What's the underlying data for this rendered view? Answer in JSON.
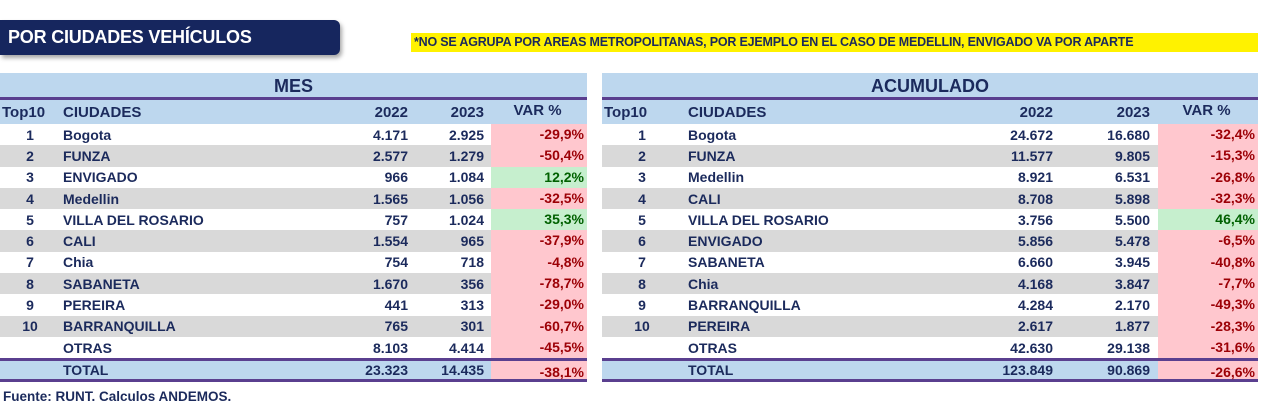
{
  "title": "POR CIUDADES VEHÍCULOS",
  "note": "*NO SE AGRUPA POR AREAS METROPOLITANAS, POR EJEMPLO EN EL CASO DE MEDELLIN, ENVIGADO VA POR APARTE",
  "colors": {
    "negative_bg": "#ffc7ce",
    "negative_text": "#9c0006",
    "positive_bg": "#c6efce",
    "positive_text": "#006100",
    "header_bg": "#bdd7ee"
  },
  "tables": [
    {
      "title": "MES",
      "headers": [
        "Top10",
        "CIUDADES",
        "2022",
        "2023",
        "VAR %"
      ],
      "rows": [
        [
          "1",
          "Bogota",
          "4.171",
          "2.925",
          "-29,9%"
        ],
        [
          "2",
          "FUNZA",
          "2.577",
          "1.279",
          "-50,4%"
        ],
        [
          "3",
          "ENVIGADO",
          "966",
          "1.084",
          "12,2%"
        ],
        [
          "4",
          "Medellin",
          "1.565",
          "1.056",
          "-32,5%"
        ],
        [
          "5",
          "VILLA DEL ROSARIO",
          "757",
          "1.024",
          "35,3%"
        ],
        [
          "6",
          "CALI",
          "1.554",
          "965",
          "-37,9%"
        ],
        [
          "7",
          "Chia",
          "754",
          "718",
          "-4,8%"
        ],
        [
          "8",
          "SABANETA",
          "1.670",
          "356",
          "-78,7%"
        ],
        [
          "9",
          "PEREIRA",
          "441",
          "313",
          "-29,0%"
        ],
        [
          "10",
          "BARRANQUILLA",
          "765",
          "301",
          "-60,7%"
        ],
        [
          "",
          "OTRAS",
          "8.103",
          "4.414",
          "-45,5%"
        ]
      ],
      "total": [
        "",
        "TOTAL",
        "23.323",
        "14.435",
        "-38,1%"
      ]
    },
    {
      "title": "ACUMULADO",
      "headers": [
        "Top10",
        "CIUDADES",
        "2022",
        "2023",
        "VAR %"
      ],
      "rows": [
        [
          "1",
          "Bogota",
          "24.672",
          "16.680",
          "-32,4%"
        ],
        [
          "2",
          "FUNZA",
          "11.577",
          "9.805",
          "-15,3%"
        ],
        [
          "3",
          "Medellin",
          "8.921",
          "6.531",
          "-26,8%"
        ],
        [
          "4",
          "CALI",
          "8.708",
          "5.898",
          "-32,3%"
        ],
        [
          "5",
          "VILLA DEL ROSARIO",
          "3.756",
          "5.500",
          "46,4%"
        ],
        [
          "6",
          "ENVIGADO",
          "5.856",
          "5.478",
          "-6,5%"
        ],
        [
          "7",
          "SABANETA",
          "6.660",
          "3.945",
          "-40,8%"
        ],
        [
          "8",
          "Chia",
          "4.168",
          "3.847",
          "-7,7%"
        ],
        [
          "9",
          "BARRANQUILLA",
          "4.284",
          "2.170",
          "-49,3%"
        ],
        [
          "10",
          "PEREIRA",
          "2.617",
          "1.877",
          "-28,3%"
        ],
        [
          "",
          "OTRAS",
          "42.630",
          "29.138",
          "-31,6%"
        ]
      ],
      "total": [
        "",
        "TOTAL",
        "123.849",
        "90.869",
        "-26,6%"
      ]
    }
  ],
  "source": "Fuente: RUNT. Calculos ANDEMOS."
}
